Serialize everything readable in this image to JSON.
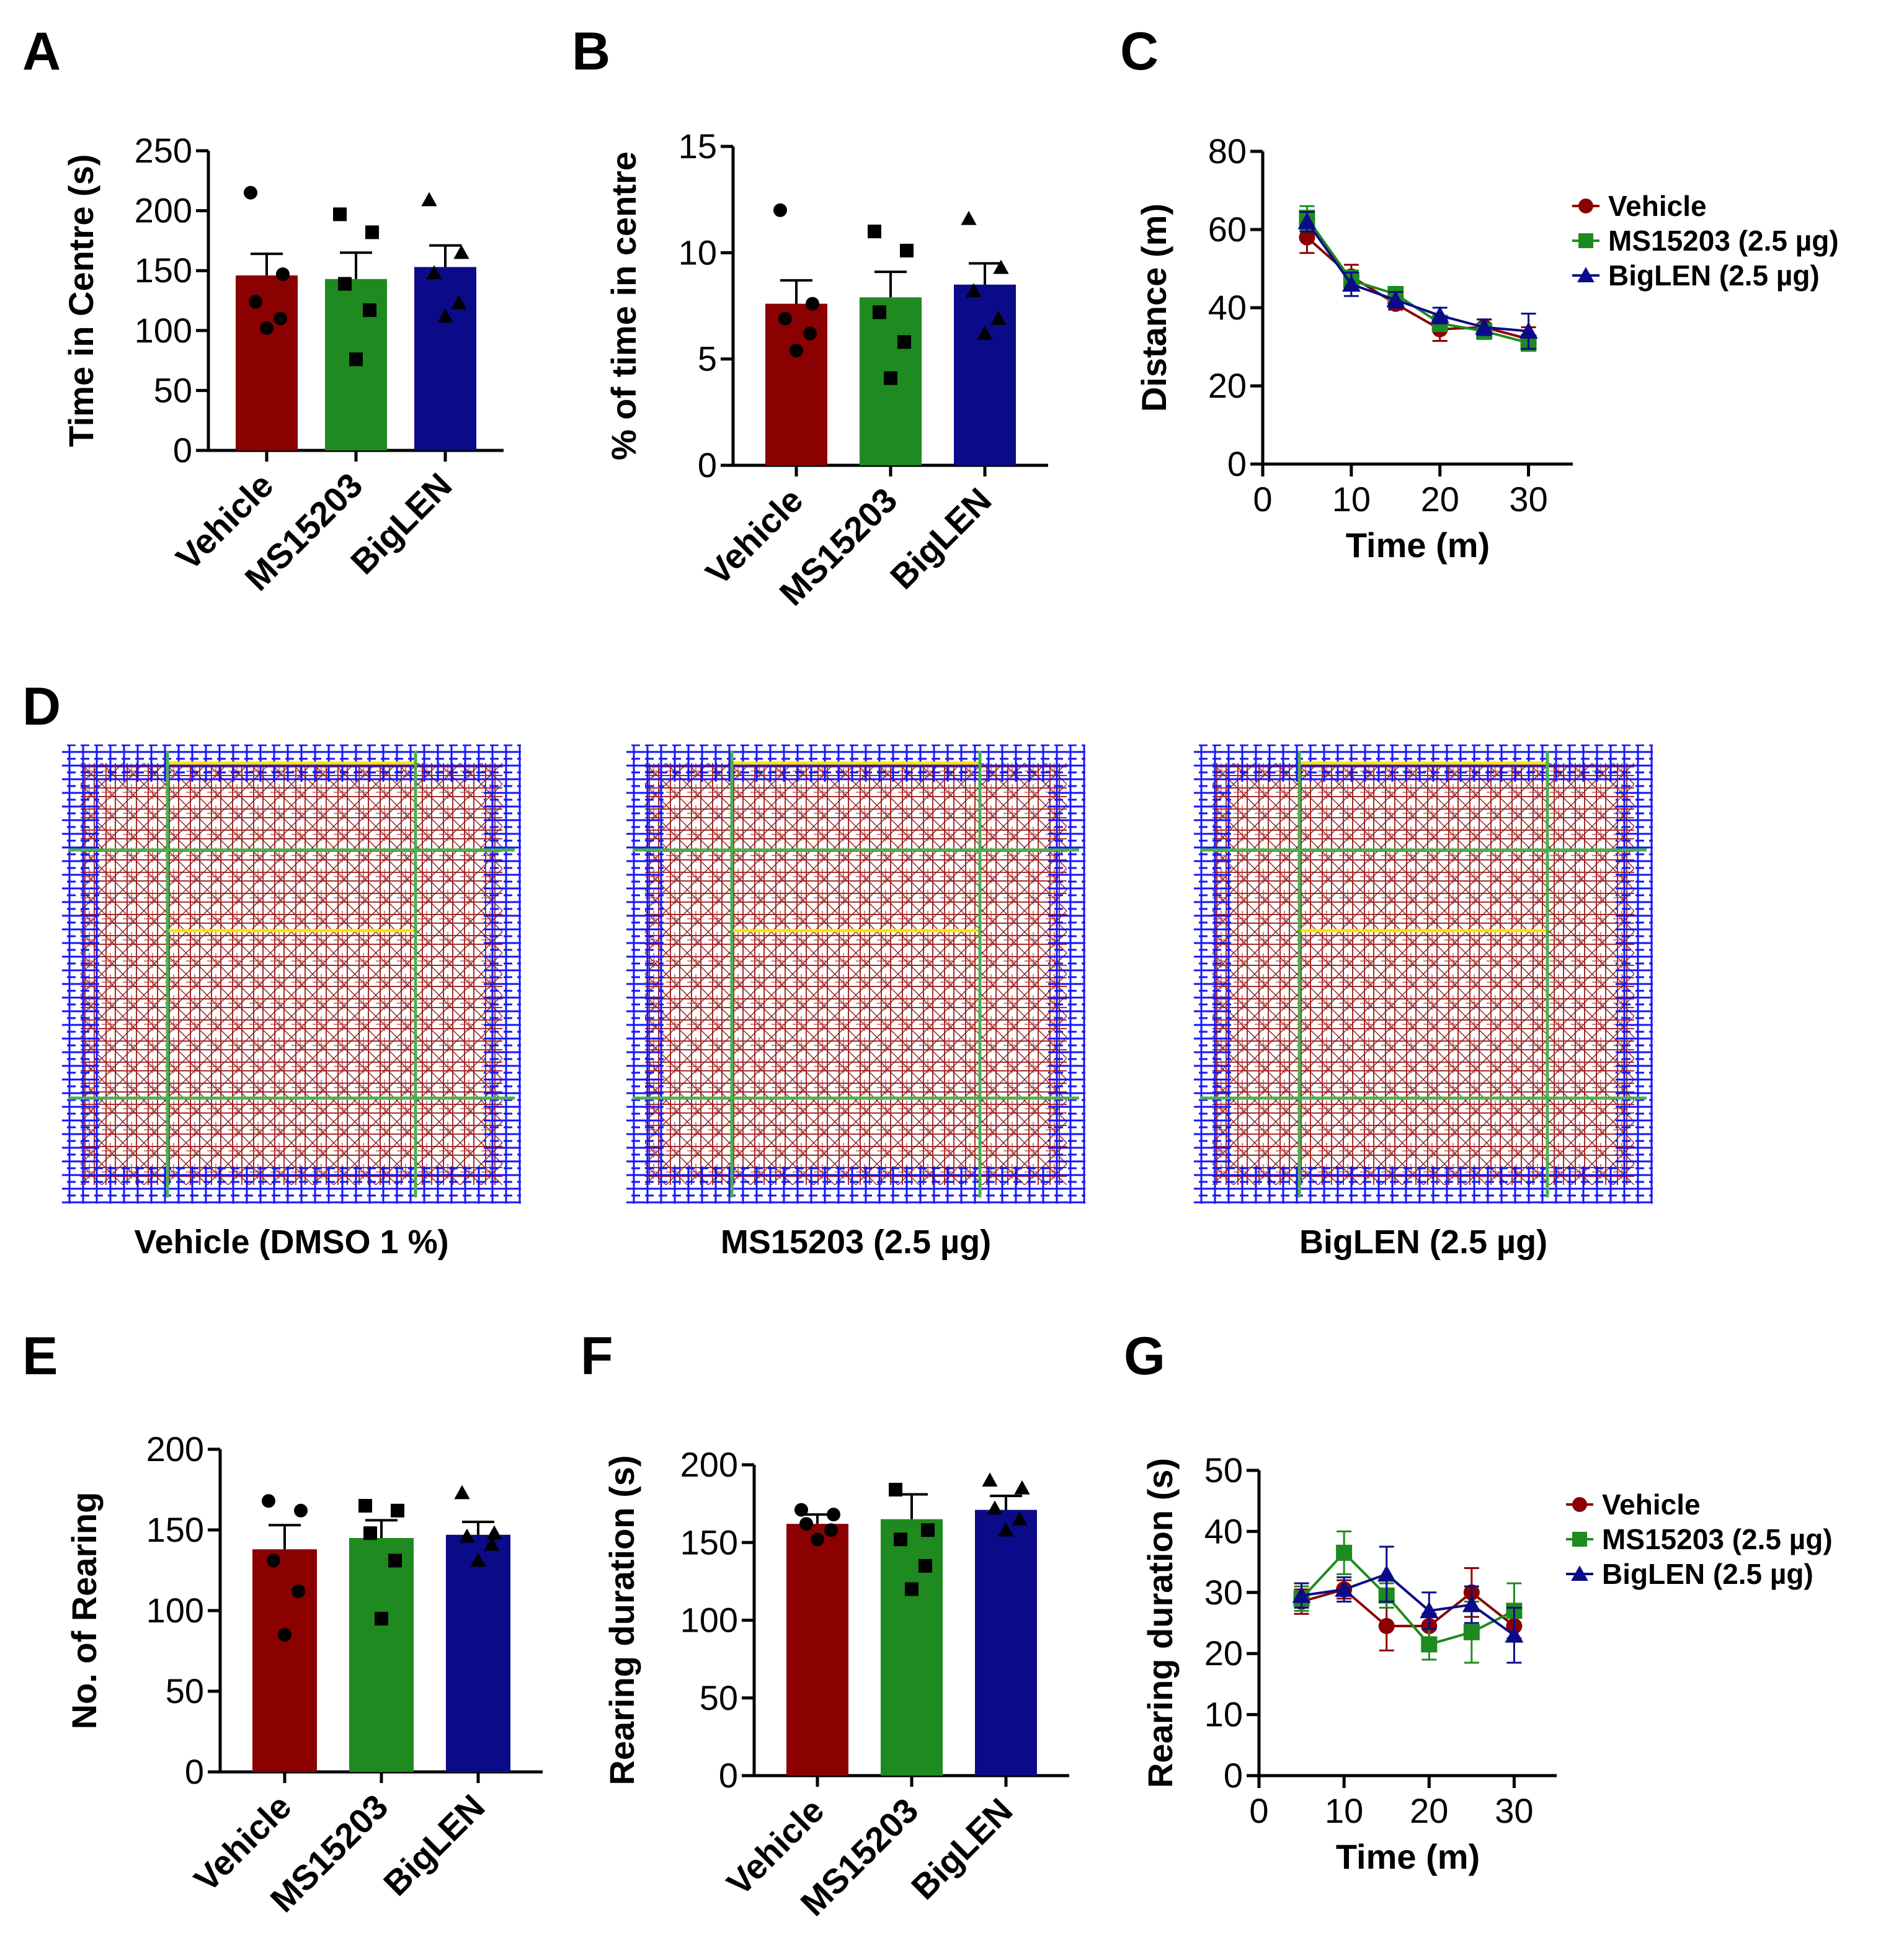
{
  "colors": {
    "vehicle": "#8b0000",
    "ms15203": "#1f8a1f",
    "biglen": "#0b0b8a",
    "axis": "#000000"
  },
  "panel_labels": [
    "A",
    "B",
    "C",
    "D",
    "E",
    "F",
    "G"
  ],
  "panel_d": {
    "captions": [
      "Vehicle (DMSO 1 %)",
      "MS15203 (2.5 µg)",
      "BigLEN (2.5 µg)"
    ],
    "track_description_icon": "open-field-track-heatmap"
  },
  "chart_data": [
    {
      "id": "A",
      "type": "bar",
      "categories": [
        "Vehicle",
        "MS15203",
        "BigLEN"
      ],
      "values": [
        146,
        143,
        153
      ],
      "errors": [
        18,
        22,
        18
      ],
      "points": [
        [
          215,
          147,
          124,
          110,
          102
        ],
        [
          197,
          182,
          139,
          117,
          76
        ],
        [
          209,
          165,
          148,
          123,
          112
        ]
      ],
      "markers": [
        "circle",
        "square",
        "triangle"
      ],
      "ylabel": "Time in Centre (s)",
      "ylim": [
        0,
        250
      ],
      "yticks": [
        0,
        50,
        100,
        150,
        200,
        250
      ],
      "ytick_labels": [
        "0",
        "50",
        "100",
        "150",
        "200",
        "250"
      ]
    },
    {
      "id": "B",
      "type": "bar",
      "categories": [
        "Vehicle",
        "MS15203",
        "BigLEN"
      ],
      "values": [
        7.6,
        7.9,
        8.5
      ],
      "errors": [
        1.1,
        1.2,
        1.0
      ],
      "points": [
        [
          12.0,
          7.6,
          6.9,
          6.2,
          5.4
        ],
        [
          11.0,
          10.1,
          7.2,
          5.8,
          4.1
        ],
        [
          11.6,
          9.3,
          8.2,
          6.9,
          6.2
        ]
      ],
      "markers": [
        "circle",
        "square",
        "triangle"
      ],
      "ylabel": "% of time in centre",
      "ylim": [
        0,
        15
      ],
      "yticks": [
        0,
        5,
        10,
        15
      ],
      "ytick_labels": [
        "0",
        "5",
        "10",
        "15"
      ]
    },
    {
      "id": "C",
      "type": "line",
      "x": [
        5,
        10,
        15,
        20,
        25,
        30
      ],
      "series": [
        {
          "name": "Vehicle",
          "values": [
            58,
            48,
            41,
            34.5,
            35,
            32
          ],
          "errors": [
            4,
            3,
            1.5,
            3,
            2,
            3
          ],
          "marker": "circle"
        },
        {
          "name": "MS15203 (2.5 µg)",
          "values": [
            63,
            47,
            43.5,
            36,
            34,
            31
          ],
          "errors": [
            3,
            2.5,
            1.5,
            2,
            2,
            2
          ],
          "marker": "square"
        },
        {
          "name": "BigLEN (2.5 µg)",
          "values": [
            62,
            46,
            42,
            38,
            35,
            34
          ],
          "errors": [
            2.5,
            3,
            2,
            2,
            2,
            4.5
          ],
          "marker": "triangle"
        }
      ],
      "xlabel": "Time (m)",
      "ylabel": "Distance (m)",
      "xlim": [
        0,
        35
      ],
      "xticks": [
        0,
        10,
        20,
        30
      ],
      "xtick_labels": [
        "0",
        "10",
        "20",
        "30"
      ],
      "ylim": [
        0,
        80
      ],
      "yticks": [
        0,
        20,
        40,
        60,
        80
      ],
      "ytick_labels": [
        "0",
        "20",
        "40",
        "60",
        "80"
      ],
      "legend": "right"
    },
    {
      "id": "E",
      "type": "bar",
      "categories": [
        "Vehicle",
        "MS15203",
        "BigLEN"
      ],
      "values": [
        138,
        145,
        147
      ],
      "errors": [
        15,
        11,
        8
      ],
      "points": [
        [
          168,
          162,
          131,
          112,
          85
        ],
        [
          165,
          162,
          148,
          131,
          95
        ],
        [
          173,
          148,
          146,
          141,
          131
        ]
      ],
      "markers": [
        "circle",
        "square",
        "triangle"
      ],
      "ylabel": "No. of Rearing",
      "ylim": [
        0,
        200
      ],
      "yticks": [
        0,
        50,
        100,
        150,
        200
      ],
      "ytick_labels": [
        "0",
        "50",
        "100",
        "150",
        "200"
      ]
    },
    {
      "id": "F",
      "type": "bar",
      "categories": [
        "Vehicle",
        "MS15203",
        "BigLEN"
      ],
      "values": [
        162,
        165,
        171
      ],
      "errors": [
        6,
        16,
        9
      ],
      "points": [
        [
          171,
          168,
          162,
          158,
          152
        ],
        [
          184,
          158,
          152,
          135,
          120
        ],
        [
          190,
          185,
          172,
          165,
          158
        ]
      ],
      "markers": [
        "circle",
        "square",
        "triangle"
      ],
      "ylabel": "Rearing duration (s)",
      "ylim": [
        0,
        200
      ],
      "yticks": [
        0,
        50,
        100,
        150,
        200
      ],
      "ytick_labels": [
        "0",
        "50",
        "100",
        "150",
        "200"
      ]
    },
    {
      "id": "G",
      "type": "line",
      "x": [
        5,
        10,
        15,
        20,
        25,
        30
      ],
      "series": [
        {
          "name": "Vehicle",
          "values": [
            28.5,
            30.5,
            24.5,
            24.5,
            30,
            24.5
          ],
          "errors": [
            2,
            1.5,
            4,
            2,
            4,
            2
          ],
          "marker": "circle"
        },
        {
          "name": "MS15203 (2.5 µg)",
          "values": [
            29,
            36.5,
            29.5,
            21.5,
            23.5,
            27
          ],
          "errors": [
            2,
            3.5,
            2,
            2.5,
            5,
            4.5
          ],
          "marker": "square"
        },
        {
          "name": "BigLEN (2.5 µg)",
          "values": [
            29.5,
            30.5,
            33,
            27,
            28,
            23
          ],
          "errors": [
            2,
            2,
            4.5,
            3,
            3,
            4.5
          ],
          "marker": "triangle"
        }
      ],
      "xlabel": "Time (m)",
      "ylabel": "Rearing duration (s)",
      "xlim": [
        0,
        35
      ],
      "xticks": [
        0,
        10,
        20,
        30
      ],
      "xtick_labels": [
        "0",
        "10",
        "20",
        "30"
      ],
      "ylim": [
        0,
        50
      ],
      "yticks": [
        0,
        10,
        20,
        30,
        40,
        50
      ],
      "ytick_labels": [
        "0",
        "10",
        "20",
        "30",
        "40",
        "50"
      ],
      "legend": "right"
    }
  ]
}
